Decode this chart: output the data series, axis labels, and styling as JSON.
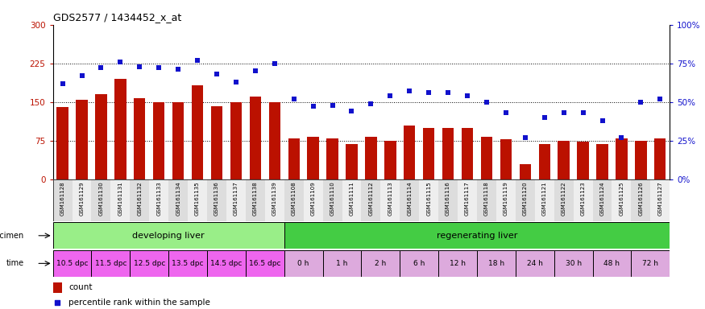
{
  "title": "GDS2577 / 1434452_x_at",
  "gsm_labels": [
    "GSM161128",
    "GSM161129",
    "GSM161130",
    "GSM161131",
    "GSM161132",
    "GSM161133",
    "GSM161134",
    "GSM161135",
    "GSM161136",
    "GSM161137",
    "GSM161138",
    "GSM161139",
    "GSM161108",
    "GSM161109",
    "GSM161110",
    "GSM161111",
    "GSM161112",
    "GSM161113",
    "GSM161114",
    "GSM161115",
    "GSM161116",
    "GSM161117",
    "GSM161118",
    "GSM161119",
    "GSM161120",
    "GSM161121",
    "GSM161122",
    "GSM161123",
    "GSM161124",
    "GSM161125",
    "GSM161126",
    "GSM161127"
  ],
  "counts": [
    140,
    155,
    165,
    195,
    157,
    150,
    150,
    182,
    142,
    150,
    160,
    150,
    80,
    82,
    80,
    68,
    82,
    75,
    105,
    100,
    100,
    100,
    82,
    78,
    30,
    68,
    75,
    73,
    68,
    80,
    75,
    80
  ],
  "percentiles": [
    62,
    67,
    72,
    76,
    73,
    72,
    71,
    77,
    68,
    63,
    70,
    75,
    52,
    47,
    48,
    44,
    49,
    54,
    57,
    56,
    56,
    54,
    50,
    43,
    27,
    40,
    43,
    43,
    38,
    27,
    50,
    52
  ],
  "bar_color": "#BB1100",
  "dot_color": "#1111CC",
  "left_ylim": [
    0,
    300
  ],
  "right_ylim": [
    0,
    100
  ],
  "left_yticks": [
    0,
    75,
    150,
    225,
    300
  ],
  "right_yticks": [
    0,
    25,
    50,
    75,
    100
  ],
  "right_yticklabels": [
    "0%",
    "25%",
    "50%",
    "75%",
    "100%"
  ],
  "hlines": [
    75,
    150,
    225
  ],
  "specimen_labels": [
    "developing liver",
    "regenerating liver"
  ],
  "specimen_color_dev": "#99EE88",
  "specimen_color_reg": "#44CC44",
  "time_labels_dev": [
    "10.5 dpc",
    "11.5 dpc",
    "12.5 dpc",
    "13.5 dpc",
    "14.5 dpc",
    "16.5 dpc"
  ],
  "time_labels_reg": [
    "0 h",
    "1 h",
    "2 h",
    "6 h",
    "12 h",
    "18 h",
    "24 h",
    "30 h",
    "48 h",
    "72 h"
  ],
  "time_color_dev": "#EE66EE",
  "time_color_reg": "#DDAADD",
  "n_dev": 12,
  "n_reg": 20,
  "legend_count_color": "#BB1100",
  "legend_pct_color": "#1111CC",
  "background_color": "#ffffff"
}
